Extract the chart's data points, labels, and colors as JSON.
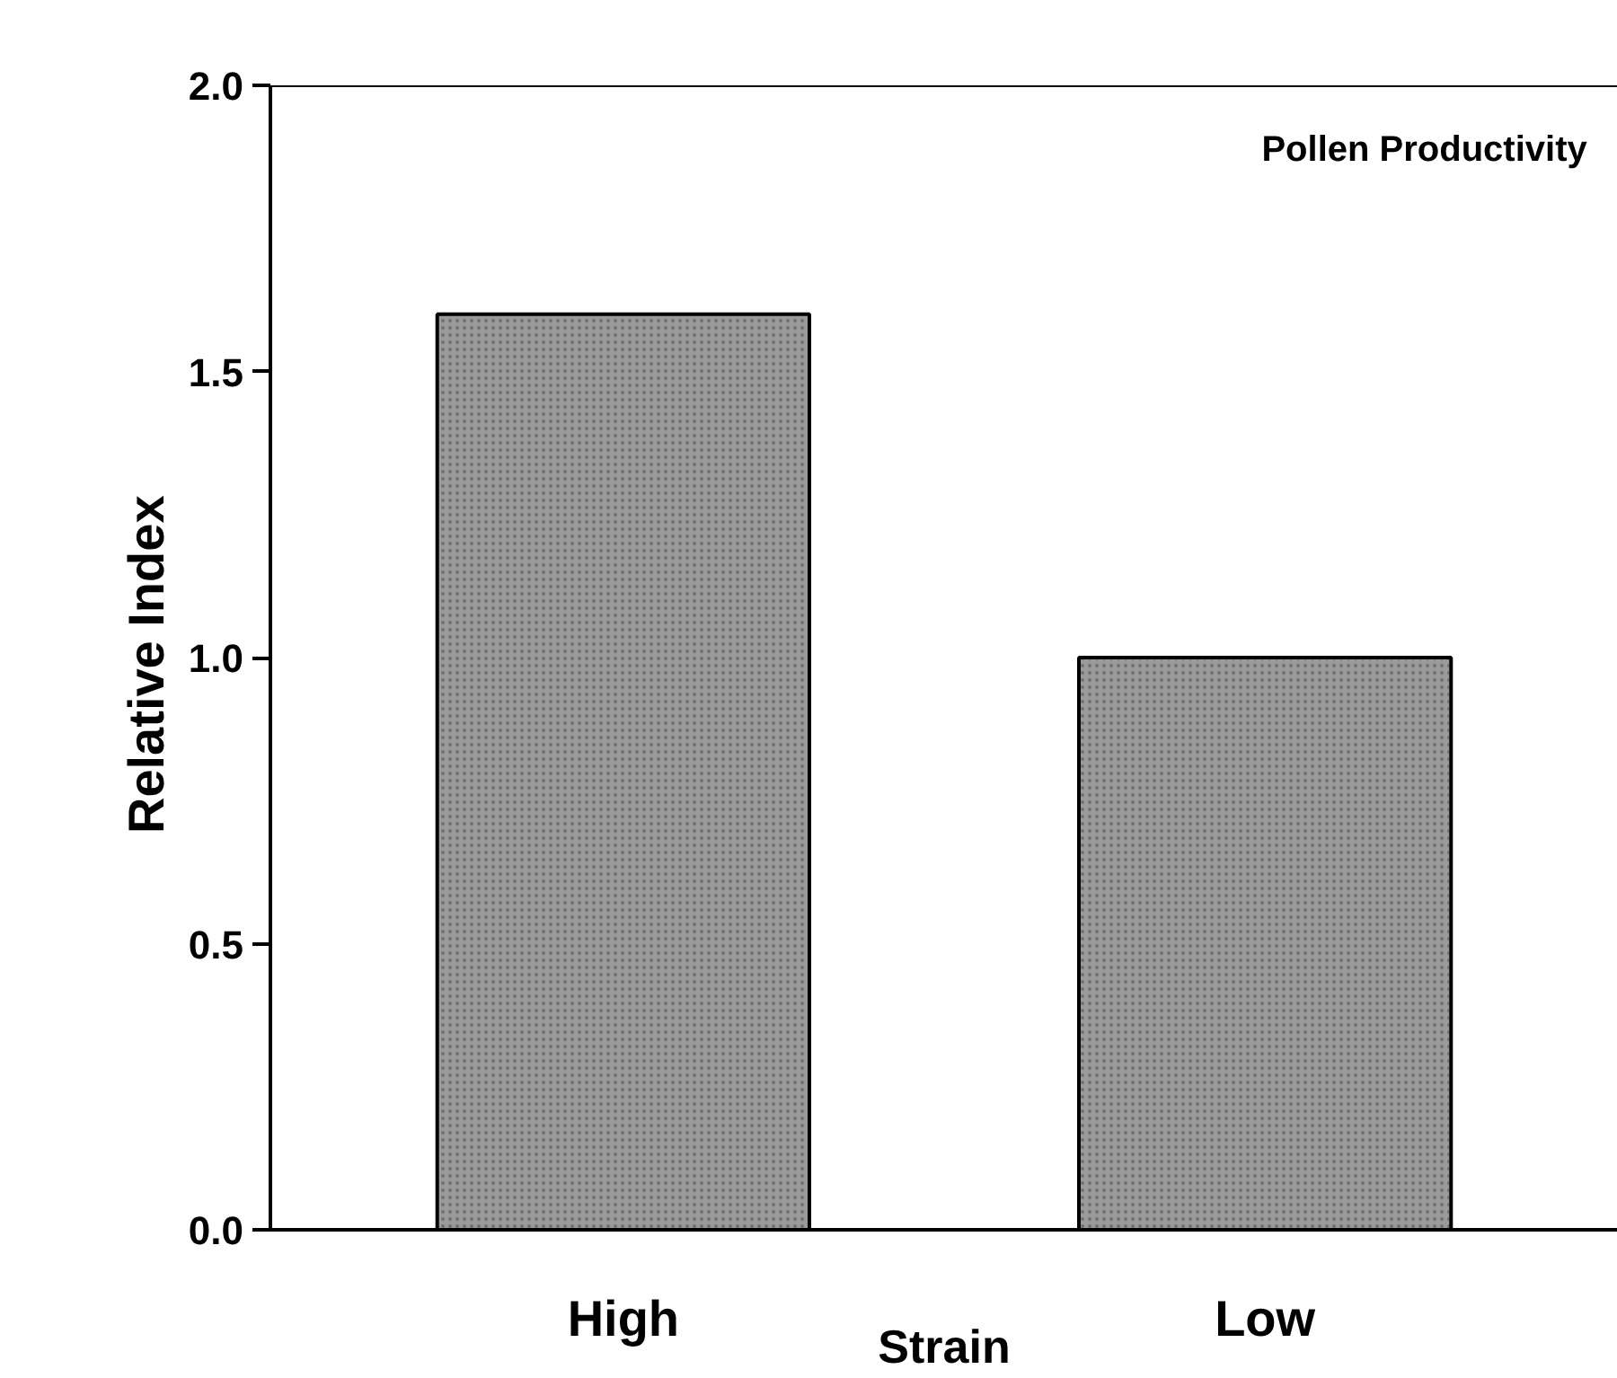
{
  "chart_data": {
    "type": "bar",
    "categories": [
      "High",
      "Low"
    ],
    "values": [
      1.6,
      1.0
    ],
    "color": "#9a9a9a",
    "xlabel": "Strain",
    "ylabel": "Relative  Index",
    "ylim": [
      0,
      2.0
    ],
    "yticks": [
      {
        "value": 0,
        "label": "0.0"
      },
      0.5,
      {
        "value": 1,
        "label": "1.0"
      },
      1.5,
      {
        "value": 2,
        "label": "2.0"
      }
    ],
    "annotations": [
      "Pollen Productivity"
    ],
    "grid": false
  }
}
